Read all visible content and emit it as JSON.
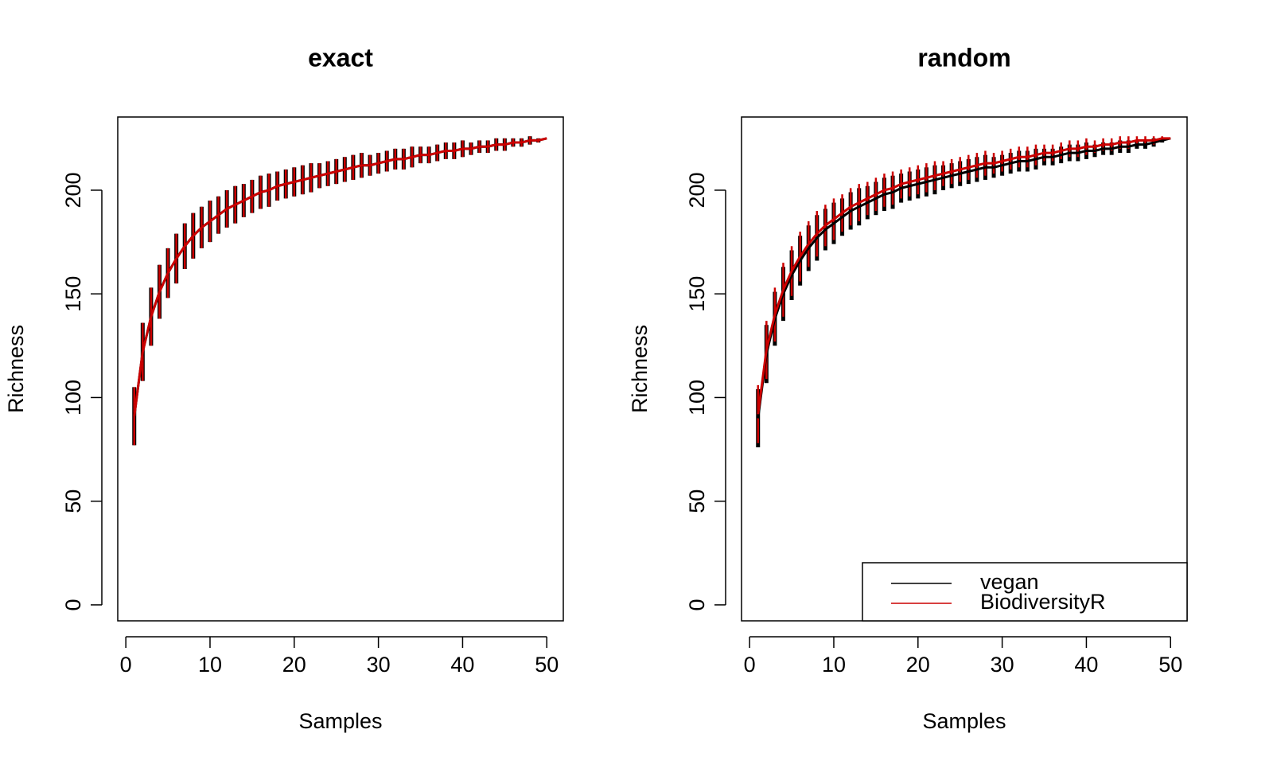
{
  "chart_data": [
    {
      "type": "line",
      "title": "exact",
      "x_label": "Samples",
      "y_label": "Richness",
      "x": [
        1,
        2,
        3,
        4,
        5,
        6,
        7,
        8,
        9,
        10,
        11,
        12,
        13,
        14,
        15,
        16,
        17,
        18,
        19,
        20,
        21,
        22,
        23,
        24,
        25,
        26,
        27,
        28,
        29,
        30,
        31,
        32,
        33,
        34,
        35,
        36,
        37,
        38,
        39,
        40,
        41,
        42,
        43,
        44,
        45,
        46,
        47,
        48,
        49,
        50
      ],
      "series": [
        {
          "color": "#000000",
          "values": [
            91,
            122,
            139,
            151,
            160,
            167,
            173,
            178,
            182,
            185,
            188,
            191,
            193,
            195,
            197,
            199,
            200,
            202,
            203,
            204,
            205,
            206,
            207,
            208,
            209,
            210,
            211,
            212,
            212,
            213,
            214,
            215,
            215,
            216,
            217,
            217,
            218,
            219,
            219,
            220,
            220,
            221,
            221,
            222,
            222,
            223,
            223,
            224,
            224,
            225
          ],
          "error": [
            14,
            14,
            14,
            13,
            12,
            12,
            11,
            11,
            10,
            10,
            9,
            9,
            9,
            8,
            8,
            8,
            8,
            7,
            7,
            7,
            7,
            7,
            6,
            6,
            6,
            6,
            6,
            6,
            5,
            5,
            5,
            5,
            5,
            5,
            4,
            4,
            4,
            4,
            4,
            4,
            3,
            3,
            3,
            3,
            3,
            2,
            2,
            2,
            1,
            0
          ]
        },
        {
          "color": "#cc0000",
          "values": [
            91,
            122,
            139,
            151,
            160,
            167,
            173,
            178,
            182,
            185,
            188,
            191,
            193,
            195,
            197,
            199,
            200,
            202,
            203,
            204,
            205,
            206,
            207,
            208,
            209,
            210,
            211,
            212,
            212,
            213,
            214,
            215,
            215,
            216,
            217,
            217,
            218,
            219,
            219,
            220,
            220,
            221,
            221,
            222,
            222,
            223,
            223,
            224,
            224,
            225
          ],
          "error": [
            14,
            14,
            14,
            13,
            12,
            12,
            11,
            11,
            10,
            10,
            9,
            9,
            9,
            8,
            8,
            8,
            8,
            7,
            7,
            7,
            7,
            7,
            6,
            6,
            6,
            6,
            6,
            6,
            5,
            5,
            5,
            5,
            5,
            5,
            4,
            4,
            4,
            4,
            4,
            4,
            3,
            3,
            3,
            3,
            3,
            2,
            2,
            2,
            1,
            0
          ]
        }
      ],
      "xlim": [
        -0.96,
        51.96
      ],
      "xticks": [
        0,
        10,
        20,
        30,
        40,
        50
      ],
      "ylim": [
        -7.7,
        235.3
      ],
      "yticks": [
        0,
        50,
        100,
        150,
        200
      ]
    },
    {
      "type": "line",
      "title": "random",
      "x_label": "Samples",
      "y_label": "Richness",
      "legend": "bottomright",
      "x": [
        1,
        2,
        3,
        4,
        5,
        6,
        7,
        8,
        9,
        10,
        11,
        12,
        13,
        14,
        15,
        16,
        17,
        18,
        19,
        20,
        21,
        22,
        23,
        24,
        25,
        26,
        27,
        28,
        29,
        30,
        31,
        32,
        33,
        34,
        35,
        36,
        37,
        38,
        39,
        40,
        41,
        42,
        43,
        44,
        45,
        46,
        47,
        48,
        49,
        50
      ],
      "series": [
        {
          "name": "vegan",
          "color": "#000000",
          "values": [
            90,
            121,
            138,
            150,
            159,
            166,
            172,
            177,
            181,
            184,
            187,
            190,
            192,
            194,
            196,
            198,
            199,
            201,
            202,
            203,
            204,
            205,
            206,
            207,
            208,
            209,
            210,
            211,
            211,
            212,
            213,
            214,
            214,
            215,
            216,
            216,
            217,
            218,
            218,
            219,
            219,
            220,
            220,
            221,
            221,
            222,
            222,
            223,
            224,
            225
          ],
          "error": [
            14,
            14,
            13,
            13,
            12,
            12,
            11,
            11,
            10,
            10,
            9,
            9,
            9,
            8,
            8,
            8,
            8,
            7,
            7,
            7,
            7,
            7,
            6,
            6,
            6,
            6,
            6,
            6,
            5,
            5,
            5,
            5,
            5,
            5,
            4,
            4,
            4,
            4,
            4,
            4,
            3,
            3,
            3,
            3,
            3,
            2,
            2,
            2,
            1,
            0
          ]
        },
        {
          "name": "BiodiversityR",
          "color": "#cc0000",
          "values": [
            92,
            123,
            140,
            152,
            161,
            168,
            174,
            179,
            183,
            186,
            189,
            192,
            194,
            196,
            198,
            200,
            201,
            203,
            204,
            205,
            206,
            207,
            208,
            209,
            210,
            211,
            212,
            213,
            213,
            214,
            215,
            216,
            216,
            217,
            218,
            218,
            219,
            220,
            220,
            221,
            221,
            222,
            222,
            223,
            223,
            224,
            224,
            224,
            225,
            225
          ],
          "error": [
            14,
            14,
            13,
            13,
            12,
            12,
            11,
            11,
            10,
            10,
            9,
            9,
            9,
            8,
            8,
            8,
            8,
            7,
            7,
            7,
            7,
            7,
            6,
            6,
            6,
            6,
            6,
            6,
            5,
            5,
            5,
            5,
            5,
            5,
            4,
            4,
            4,
            4,
            4,
            4,
            3,
            3,
            3,
            3,
            3,
            2,
            2,
            2,
            1,
            0
          ]
        }
      ],
      "xlim": [
        -0.96,
        51.96
      ],
      "xticks": [
        0,
        10,
        20,
        30,
        40,
        50
      ],
      "ylim": [
        -7.7,
        235.3
      ],
      "yticks": [
        0,
        50,
        100,
        150,
        200
      ]
    }
  ]
}
